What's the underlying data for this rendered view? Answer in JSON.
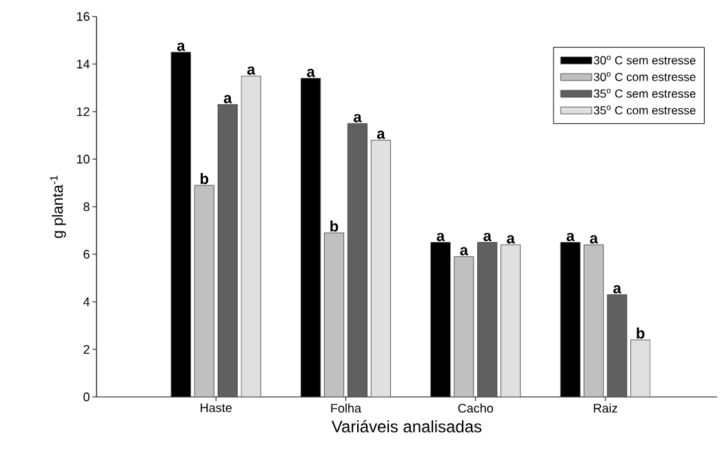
{
  "chart_data": {
    "type": "bar",
    "xlabel": "Variáveis analisadas",
    "ylabel": "g planta$^{-1}$",
    "categories": [
      "Haste",
      "Folha",
      "Cacho",
      "Raiz"
    ],
    "series": [
      {
        "name": "30$^{o}$ C sem estresse",
        "color": "#000000",
        "values": [
          14.5,
          13.4,
          6.5,
          6.5
        ],
        "value_labels": [
          "a",
          "a",
          "a",
          "a"
        ]
      },
      {
        "name": "30$^{o}$ C com estresse",
        "color": "#c0c0c0",
        "values": [
          8.9,
          6.9,
          5.9,
          6.4
        ],
        "value_labels": [
          "b",
          "b",
          "a",
          "a"
        ]
      },
      {
        "name": "35$^{o}$ C sem estresse",
        "color": "#606060",
        "values": [
          12.3,
          11.5,
          6.5,
          4.3
        ],
        "value_labels": [
          "a",
          "a",
          "a",
          "a"
        ]
      },
      {
        "name": "35$^{o}$ C com estresse",
        "color": "#e0e0e0",
        "values": [
          13.5,
          10.8,
          6.4,
          2.4
        ],
        "value_labels": [
          "a",
          "a",
          "a",
          "b"
        ]
      }
    ],
    "ylim": [
      0,
      16
    ],
    "yticks": [
      0,
      2,
      4,
      6,
      8,
      10,
      12,
      14,
      16
    ],
    "legend": "top right"
  }
}
